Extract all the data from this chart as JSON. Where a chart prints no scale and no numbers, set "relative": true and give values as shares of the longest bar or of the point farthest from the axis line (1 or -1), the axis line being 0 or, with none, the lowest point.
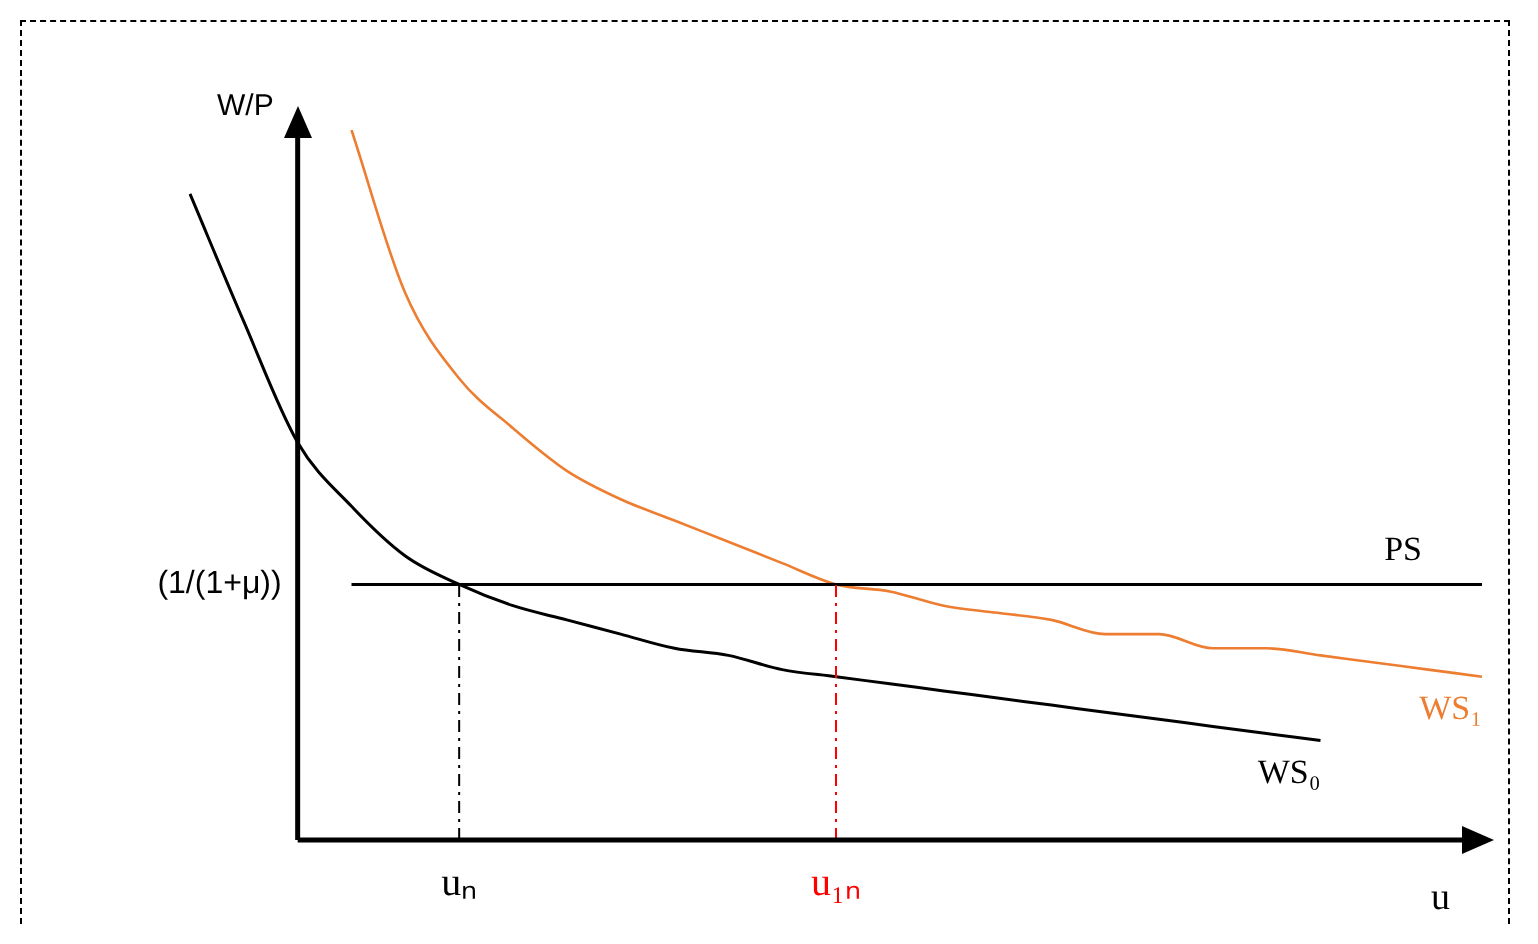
{
  "chart_data": {
    "type": "line",
    "relative": true,
    "xlabel": "u",
    "ylabel": "W/P",
    "categories": [
      null,
      null,
      null,
      null,
      null,
      "uₙ",
      null,
      null,
      null,
      null,
      null,
      null,
      "u₁ₙ",
      null,
      null,
      null,
      null,
      null,
      null,
      null,
      null,
      null,
      null,
      null,
      null
    ],
    "series": [
      {
        "name": "PS",
        "color": "#000000",
        "values": [
          null,
          null,
          null,
          0.36,
          0.36,
          0.36,
          0.36,
          0.36,
          0.36,
          0.36,
          0.36,
          0.36,
          0.36,
          0.36,
          0.36,
          0.36,
          0.36,
          0.36,
          0.36,
          0.36,
          0.36,
          0.36,
          0.36,
          0.36,
          0.36
        ]
      },
      {
        "name": "WS₁",
        "color": "#ed7d31",
        "values": [
          null,
          null,
          null,
          1,
          0.77,
          0.65,
          0.58,
          0.52,
          0.48,
          0.45,
          0.42,
          0.39,
          0.36,
          0.35,
          0.33,
          0.32,
          0.31,
          0.29,
          0.29,
          0.27,
          0.27,
          0.26,
          0.25,
          0.24,
          0.23
        ]
      },
      {
        "name": "WS₀",
        "color": "#000000",
        "values": [
          0.91,
          0.73,
          0.56,
          0.47,
          0.4,
          0.36,
          0.33,
          0.31,
          0.29,
          0.27,
          0.26,
          0.24,
          0.23,
          0.22,
          0.21,
          0.2,
          0.19,
          0.18,
          0.17,
          0.16,
          0.15,
          0.14,
          null,
          null,
          null
        ]
      }
    ],
    "ref_lines": [
      {
        "axis": "x",
        "value": "uₙ",
        "color": "#000000",
        "line_style": "dashdot"
      },
      {
        "axis": "x",
        "value": "u₁ₙ",
        "color": "#ff0000",
        "line_style": "dashdot"
      }
    ],
    "annotations": [
      "(1/(1+μ))"
    ],
    "grid": false,
    "legend": false,
    "marker": "none",
    "line_style": "solid"
  }
}
